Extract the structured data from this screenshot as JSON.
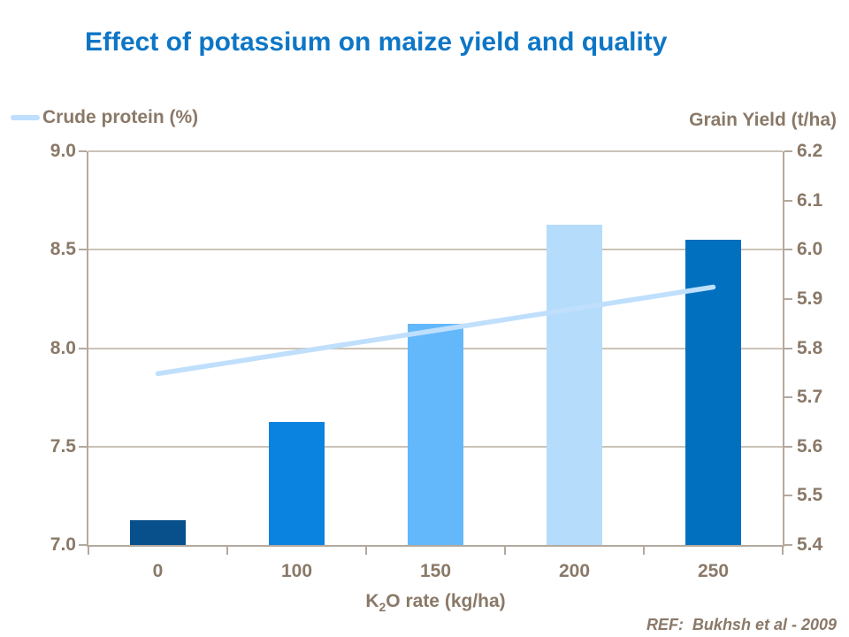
{
  "slide": {
    "title": "Effect of potassium on maize yield and quality",
    "ref_label": "REF:  Bukhsh et al - 2009"
  },
  "legend": {
    "line_series_label": "Crude protein (%)",
    "right_axis_title": "Grain Yield (t/ha)"
  },
  "chart_data": {
    "type": "bar",
    "subtype": "bar+line dual-axis combo",
    "title": "Effect of potassium on maize yield and quality",
    "categories": [
      "0",
      "100",
      "150",
      "200",
      "250"
    ],
    "xlabel_parts": {
      "prefix": "K",
      "sub": "2",
      "rest": "O rate (kg/ha)"
    },
    "series": [
      {
        "name": "Grain Yield (t/ha)",
        "type": "bar",
        "axis": "right",
        "values": [
          5.45,
          5.65,
          5.85,
          6.05,
          6.02
        ],
        "bar_colors": [
          "#07508c",
          "#0a82e0",
          "#63b8fb",
          "#b6dcfb",
          "#0070bf"
        ]
      },
      {
        "name": "Crude protein (%)",
        "type": "line",
        "axis": "left",
        "values": [
          7.87,
          7.98,
          8.09,
          8.2,
          8.31
        ],
        "color": "#bfdffc"
      }
    ],
    "left_axis": {
      "title": "Crude protein (%)",
      "min": 7.0,
      "max": 9.0,
      "ticks": [
        "9.0",
        "8.5",
        "8.0",
        "7.5",
        "7.0"
      ]
    },
    "right_axis": {
      "title": "Grain Yield (t/ha)",
      "min": 5.4,
      "max": 6.2,
      "ticks": [
        "6.2",
        "6.1",
        "6.0",
        "5.9",
        "5.8",
        "5.7",
        "5.6",
        "5.5",
        "5.4"
      ]
    },
    "grid": "horizontal gridlines at left-axis ticks",
    "legend_position": "top-left"
  },
  "colors": {
    "title_text": "#0d76c6",
    "axis_text": "#8a7968",
    "axis_line": "#b4a99e",
    "gridline": "#cbc2b8",
    "line_series": "#bfdffc",
    "background": "#ffffff"
  }
}
